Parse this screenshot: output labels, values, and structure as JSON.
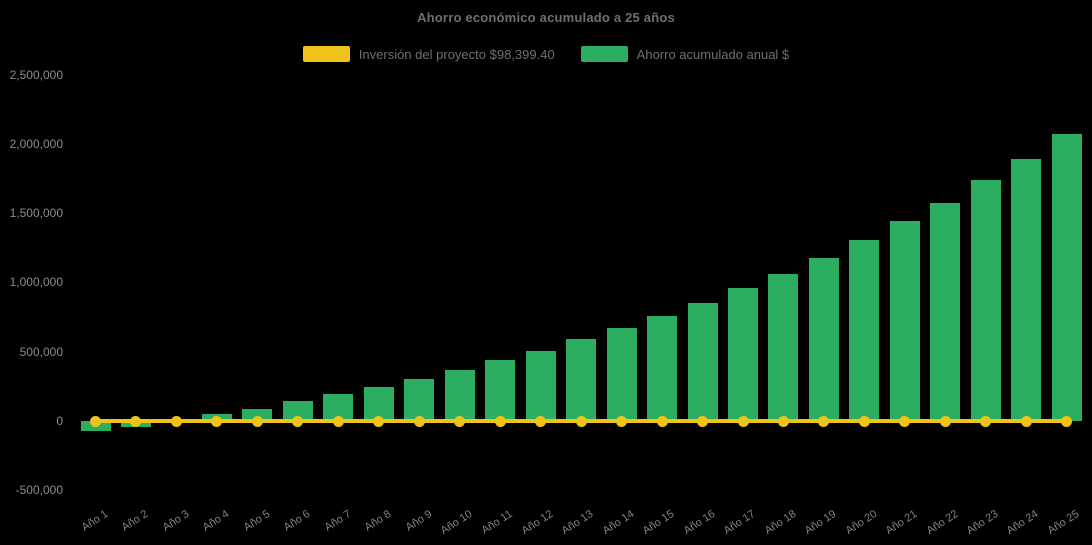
{
  "title": "Ahorro económico acumulado a 25 años",
  "legend": {
    "items": [
      {
        "label": "Inversión del proyecto $98,399.40",
        "color": "#efc319"
      },
      {
        "label": "Ahorro acumulado anual $",
        "color": "#2bae60"
      }
    ]
  },
  "chart_data": {
    "type": "bar",
    "title": "Ahorro económico acumulado a 25 años",
    "categories": [
      "Año 1",
      "Año 2",
      "Año 3",
      "Año 4",
      "Año 5",
      "Año 6",
      "Año 7",
      "Año 8",
      "Año 9",
      "Año 10",
      "Año 11",
      "Año 12",
      "Año 13",
      "Año 14",
      "Año 15",
      "Año 16",
      "Año 17",
      "Año 18",
      "Año 19",
      "Año 20",
      "Año 21",
      "Año 22",
      "Año 23",
      "Año 24",
      "Año 25"
    ],
    "series": [
      {
        "name": "Ahorro acumulado anual $",
        "type": "bar",
        "color": "#2bae60",
        "values": [
          -70000,
          -40000,
          5000,
          48000,
          88000,
          142000,
          196000,
          243000,
          303000,
          366000,
          440000,
          508000,
          590000,
          668000,
          757000,
          852000,
          957000,
          1060000,
          1178000,
          1303000,
          1440000,
          1573000,
          1736000,
          1893000,
          2070000
        ]
      },
      {
        "name": "Inversión del proyecto $98,399.40",
        "type": "line",
        "color": "#efc319",
        "constant_value": 98399.4,
        "rendered_along_zero_baseline": true
      }
    ],
    "xlabel": "",
    "ylabel": "",
    "ylim": [
      -500000,
      2500000
    ],
    "yticks": {
      "values": [
        2500000,
        2000000,
        1500000,
        1000000,
        500000,
        0,
        -500000
      ],
      "labels": [
        "2,500,000",
        "2,000,000",
        "1,500,000",
        "1,000,000",
        "500,000",
        "0",
        "-500,000"
      ]
    },
    "grid": "off",
    "legend_position": "top-center",
    "background_color": "#000000"
  }
}
